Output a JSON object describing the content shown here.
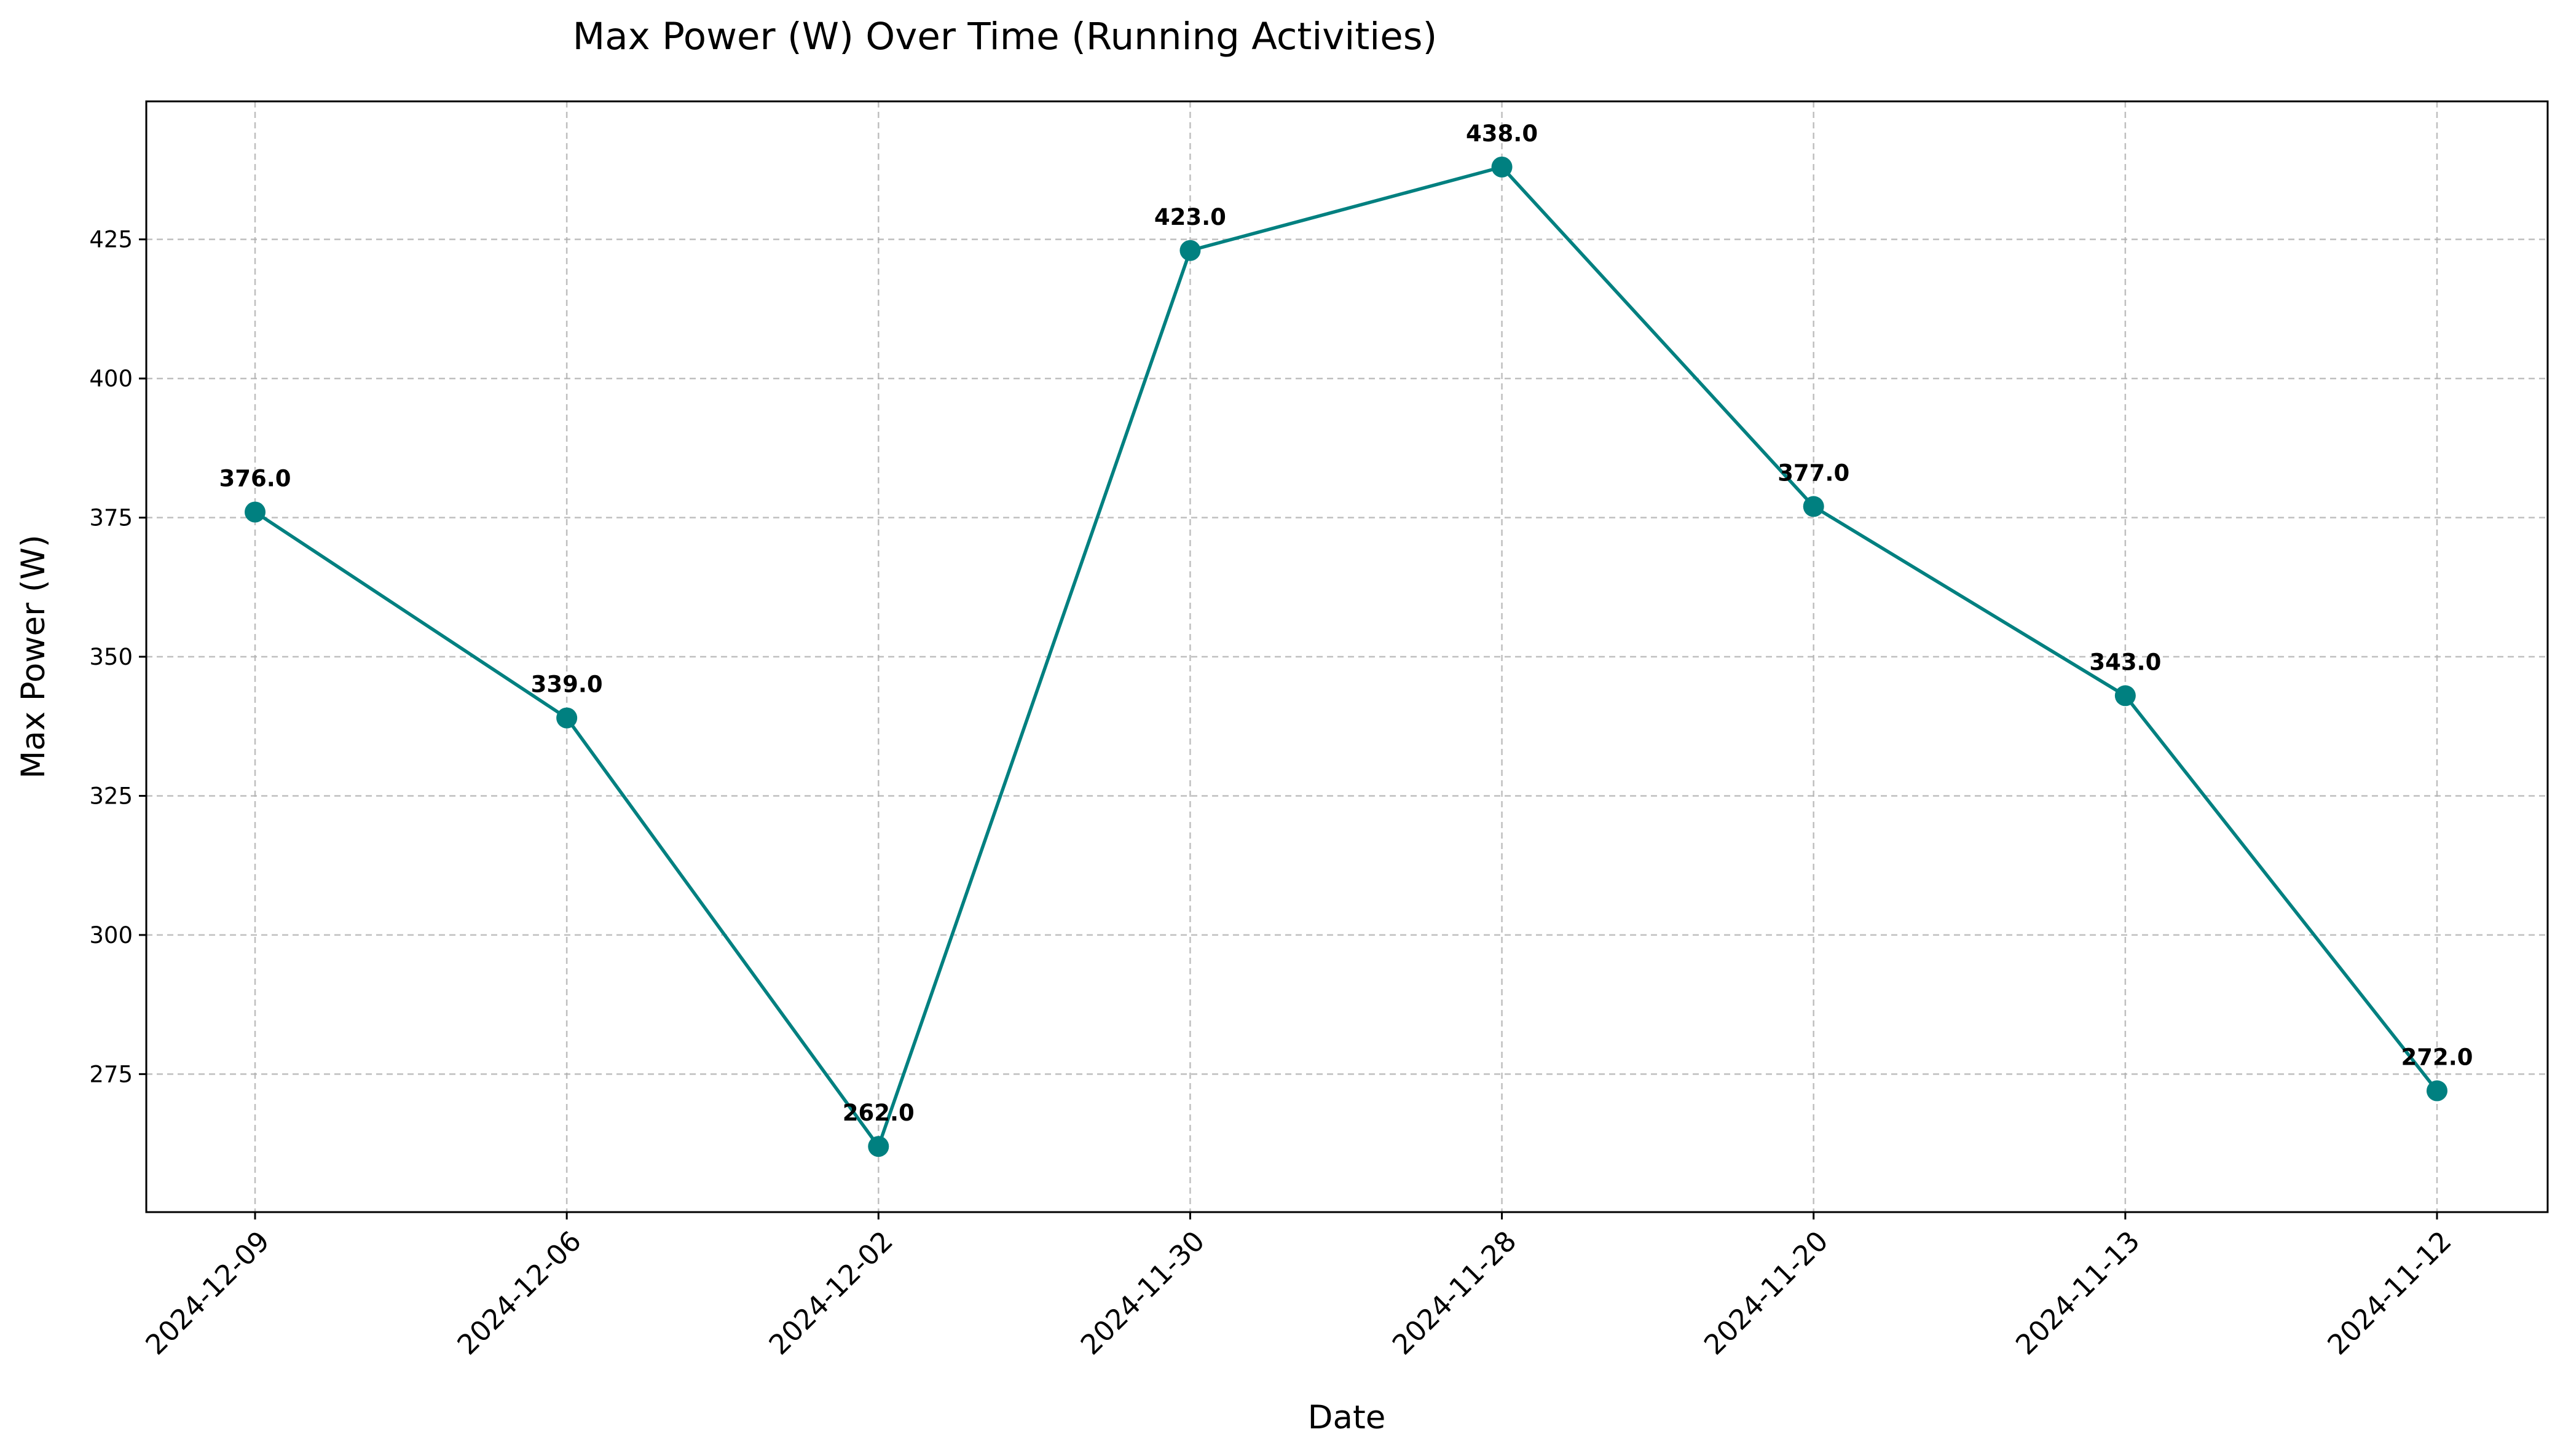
{
  "chart_data": {
    "type": "line",
    "title": "Max Power (W) Over Time (Running Activities)",
    "xlabel": "Date",
    "ylabel": "Max Power (W)",
    "categories": [
      "2024-12-09",
      "2024-12-06",
      "2024-12-02",
      "2024-11-30",
      "2024-11-28",
      "2024-11-20",
      "2024-11-13",
      "2024-11-12"
    ],
    "series": [
      {
        "values": [
          376.0,
          339.0,
          262.0,
          423.0,
          438.0,
          377.0,
          343.0,
          272.0
        ],
        "labels": [
          "376.0",
          "339.0",
          "262.0",
          "423.0",
          "438.0",
          "377.0",
          "343.0",
          "272.0"
        ],
        "color": "#008080",
        "marker": "circle"
      }
    ],
    "ylim": [
      250.2,
      449.8
    ],
    "yticks": [
      275,
      300,
      325,
      350,
      375,
      400,
      425
    ],
    "grid": true,
    "legend": "none"
  }
}
